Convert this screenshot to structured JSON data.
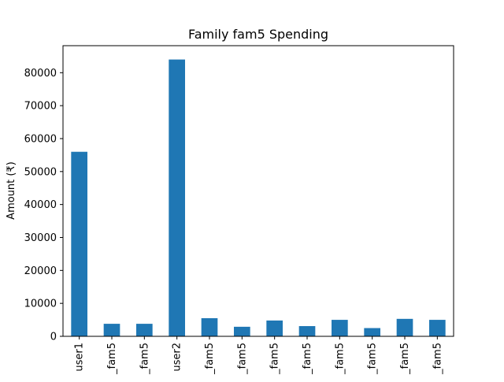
{
  "chart_data": {
    "type": "bar",
    "title": "Family fam5 Spending",
    "xlabel": "",
    "ylabel": "Amount (₹)",
    "categories": [
      "user1",
      "_fam5",
      "_fam5",
      "user2",
      "_fam5",
      "_fam5",
      "_fam5",
      "_fam5",
      "_fam5",
      "_fam5",
      "_fam5",
      "_fam5"
    ],
    "values": [
      56000,
      3800,
      3800,
      84000,
      5500,
      2900,
      4800,
      3100,
      5000,
      2500,
      5300,
      5000
    ],
    "ylim": [
      0,
      88200
    ],
    "yticks": [
      0,
      10000,
      20000,
      30000,
      40000,
      50000,
      60000,
      70000,
      80000
    ],
    "grid": false,
    "legend": "none",
    "bar_color": "#1f77b4"
  }
}
